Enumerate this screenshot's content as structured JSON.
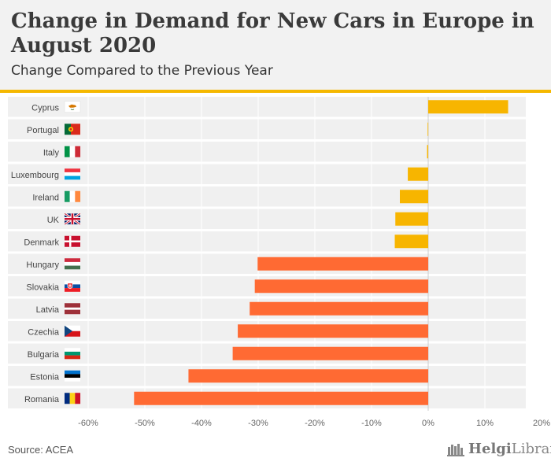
{
  "header": {
    "title": "Change in Demand for New Cars in Europe in August 2020",
    "subtitle": "Change Compared to the Previous Year"
  },
  "footer": {
    "source": "Source: ACEA",
    "brand_name_bold": "Helgi",
    "brand_name_rest": "Library."
  },
  "colors": {
    "positive_bar": "#f7b500",
    "negative_bar": "#ff6a33",
    "row_band": "#f0f0f0",
    "accent": "#f5b800"
  },
  "chart_data": {
    "type": "bar",
    "orientation": "horizontal",
    "title": "Change in Demand for New Cars in Europe in August 2020",
    "subtitle": "Change Compared to the Previous Year",
    "xlabel": "",
    "ylabel": "",
    "xlim": [
      -60,
      20
    ],
    "x_ticks": [
      -60,
      -50,
      -40,
      -30,
      -20,
      -10,
      0,
      10,
      20
    ],
    "x_tick_labels": [
      "-60%",
      "-50%",
      "-40%",
      "-30%",
      "-20%",
      "-10%",
      "0%",
      "10%",
      "20%"
    ],
    "grid": true,
    "categories": [
      "Cyprus",
      "Portugal",
      "Italy",
      "Luxembourg",
      "Ireland",
      "UK",
      "Denmark",
      "Hungary",
      "Slovakia",
      "Latvia",
      "Czechia",
      "Bulgaria",
      "Estonia",
      "Romania"
    ],
    "values": [
      14.1,
      -0.1,
      -0.2,
      -3.6,
      -5.0,
      -5.8,
      -5.9,
      -30.1,
      -30.6,
      -31.5,
      -33.6,
      -34.5,
      -42.3,
      -51.9
    ],
    "flags": [
      "cyprus-flag-icon",
      "portugal-flag-icon",
      "italy-flag-icon",
      "luxembourg-flag-icon",
      "ireland-flag-icon",
      "uk-flag-icon",
      "denmark-flag-icon",
      "hungary-flag-icon",
      "slovakia-flag-icon",
      "latvia-flag-icon",
      "czechia-flag-icon",
      "bulgaria-flag-icon",
      "estonia-flag-icon",
      "romania-flag-icon"
    ]
  }
}
